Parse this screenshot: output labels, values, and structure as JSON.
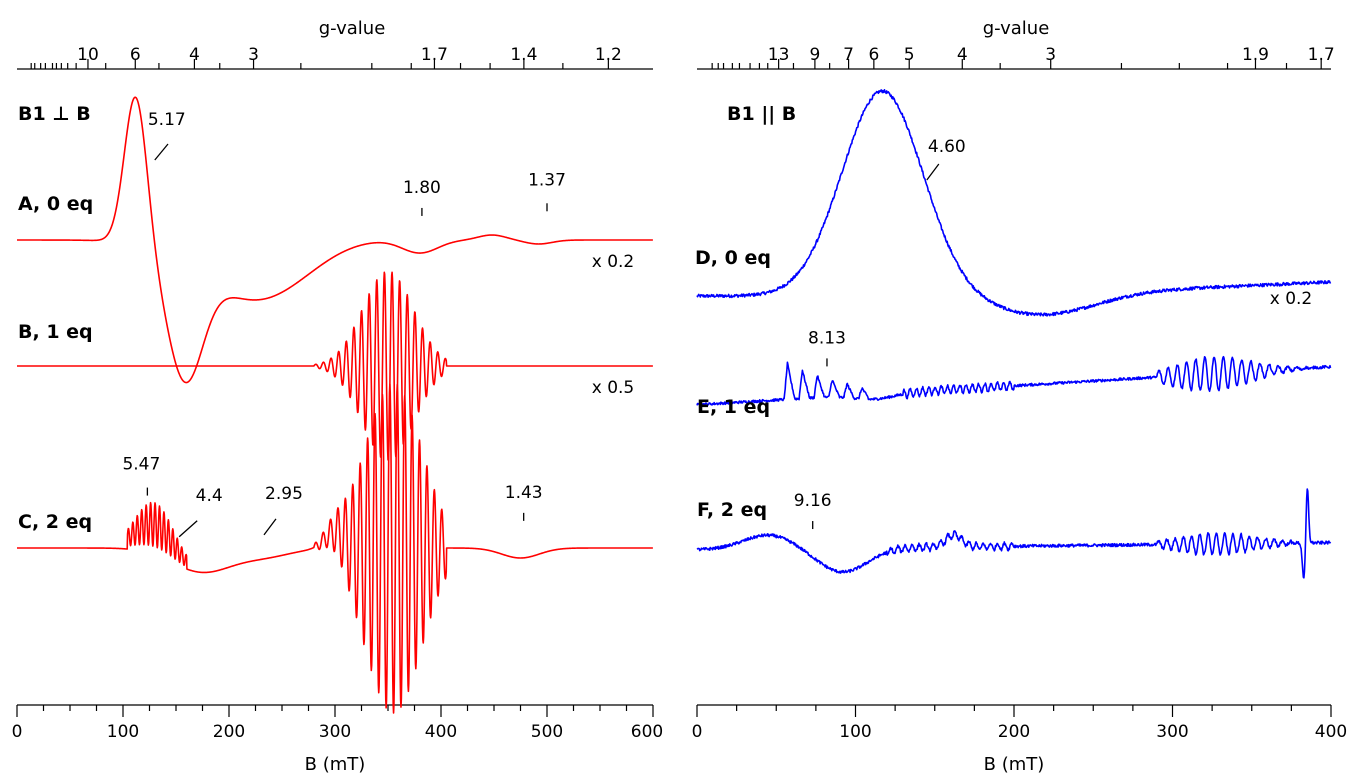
{
  "chart_data": [
    {
      "type": "line",
      "title": "B1 ⊥ B",
      "xlabel": "B (mT)",
      "x2label": "g-value",
      "xlim": [
        0,
        600
      ],
      "x_ticks": [
        "0",
        "100",
        "200",
        "300",
        "400",
        "500",
        "600"
      ],
      "g_ticks": [
        {
          "label": "10",
          "g": 10
        },
        {
          "label": "6",
          "g": 6
        },
        {
          "label": "4",
          "g": 4
        },
        {
          "label": "3",
          "g": 3
        },
        {
          "label": "1.7",
          "g": 1.7
        },
        {
          "label": "1.4",
          "g": 1.4
        },
        {
          "label": "1.2",
          "g": 1.2
        }
      ],
      "color": "#ff0000",
      "series": [
        {
          "name": "A, 0 eq",
          "scale": "x 0.2",
          "annotations": [
            {
              "label": "5.17",
              "B": 130
            },
            {
              "label": "1.80",
              "B": 382
            },
            {
              "label": "1.37",
              "B": 500
            }
          ]
        },
        {
          "name": "B, 1 eq",
          "scale": "x 0.5",
          "annotations": []
        },
        {
          "name": "C, 2 eq",
          "scale": "",
          "annotations": [
            {
              "label": "5.47",
              "B": 123
            },
            {
              "label": "4.4",
              "B": 153
            },
            {
              "label": "2.95",
              "B": 233
            },
            {
              "label": "1.43",
              "B": 478
            }
          ]
        }
      ]
    },
    {
      "type": "line",
      "title": "B1 || B",
      "xlabel": "B (mT)",
      "x2label": "g-value",
      "xlim": [
        0,
        400
      ],
      "x_ticks": [
        "0",
        "100",
        "200",
        "300",
        "400"
      ],
      "g_ticks": [
        {
          "label": "13",
          "g": 13
        },
        {
          "label": "9",
          "g": 9
        },
        {
          "label": "7",
          "g": 7
        },
        {
          "label": "6",
          "g": 6
        },
        {
          "label": "5",
          "g": 5
        },
        {
          "label": "4",
          "g": 4
        },
        {
          "label": "3",
          "g": 3
        },
        {
          "label": "1.9",
          "g": 1.9
        },
        {
          "label": "1.7",
          "g": 1.7
        }
      ],
      "color": "#0000ff",
      "series": [
        {
          "name": "D, 0 eq",
          "scale": "x 0.2",
          "annotations": [
            {
              "label": "4.60",
              "B": 145
            }
          ]
        },
        {
          "name": "E, 1 eq",
          "scale": "",
          "annotations": [
            {
              "label": "8.13",
              "B": 82
            }
          ]
        },
        {
          "name": "F, 2 eq",
          "scale": "",
          "annotations": [
            {
              "label": "9.16",
              "B": 73
            }
          ]
        }
      ]
    }
  ]
}
